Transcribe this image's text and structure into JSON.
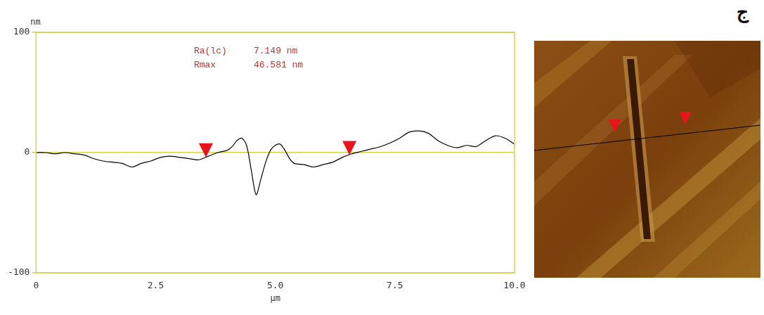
{
  "chart_data": {
    "type": "line",
    "y_unit": "nm",
    "x_label": "µm",
    "annotations": [
      {
        "label": "Ra(lc)",
        "value": "7.149 nm"
      },
      {
        "label": "Rmax",
        "value": "46.581 nm"
      }
    ],
    "panel_label": "ج",
    "x": [
      0,
      0.2,
      0.4,
      0.6,
      0.8,
      1.0,
      1.2,
      1.4,
      1.6,
      1.8,
      2.0,
      2.2,
      2.4,
      2.6,
      2.8,
      3.0,
      3.2,
      3.4,
      3.6,
      3.8,
      4.0,
      4.1,
      4.2,
      4.3,
      4.4,
      4.5,
      4.6,
      4.7,
      4.8,
      4.9,
      5.0,
      5.1,
      5.2,
      5.3,
      5.4,
      5.6,
      5.8,
      6.0,
      6.2,
      6.4,
      6.6,
      6.8,
      7.0,
      7.2,
      7.4,
      7.6,
      7.8,
      8.0,
      8.2,
      8.4,
      8.6,
      8.8,
      9.0,
      9.2,
      9.4,
      9.6,
      9.8,
      10.0
    ],
    "values": [
      0,
      0,
      -1,
      0,
      -1,
      -2,
      -5,
      -7,
      -8,
      -9,
      -12,
      -9,
      -7,
      -4,
      -3,
      -4,
      -5,
      -6,
      -3,
      0,
      2,
      5,
      10,
      12,
      6,
      -15,
      -35,
      -22,
      -8,
      2,
      6,
      7,
      2,
      -5,
      -9,
      -10,
      -12,
      -10,
      -8,
      -4,
      -1,
      1,
      3,
      5,
      8,
      12,
      17,
      18,
      16,
      10,
      6,
      4,
      6,
      5,
      10,
      14,
      12,
      7
    ],
    "color": "#000000",
    "xlim": [
      0,
      10
    ],
    "xticks": [
      0,
      2.5,
      {
        "value": 5,
        "label": "5.0"
      },
      7.5,
      {
        "value": 10,
        "label": "10.0"
      }
    ],
    "ylim": [
      -100,
      100
    ],
    "yticks": [
      -100,
      0,
      100
    ],
    "grid": true,
    "cursors": {
      "x": [
        3.55,
        6.55
      ],
      "y": [
        -4,
        -2
      ],
      "color": "#e8141c"
    }
  }
}
